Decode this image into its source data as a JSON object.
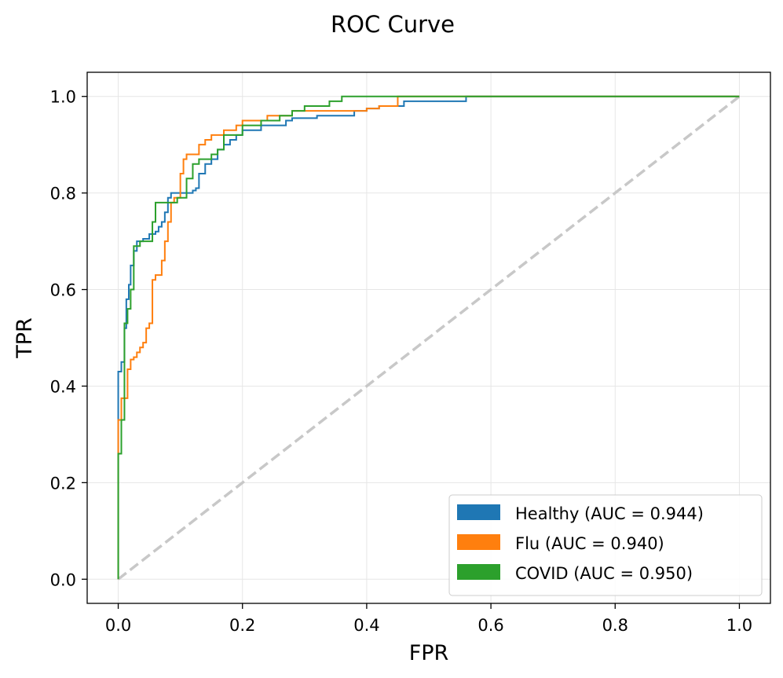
{
  "chart_data": {
    "type": "line",
    "title": "ROC Curve",
    "xlabel": "FPR",
    "ylabel": "TPR",
    "xlim": [
      -0.05,
      1.05
    ],
    "ylim": [
      -0.05,
      1.05
    ],
    "grid": true,
    "legend_position": "lower-right",
    "xticks": [
      0.0,
      0.2,
      0.4,
      0.6,
      0.8,
      1.0
    ],
    "xtick_labels": [
      "0.0",
      "0.2",
      "0.4",
      "0.6",
      "0.8",
      "1.0"
    ],
    "yticks": [
      0.0,
      0.2,
      0.4,
      0.6,
      0.8,
      1.0
    ],
    "ytick_labels": [
      "0.0",
      "0.2",
      "0.4",
      "0.6",
      "0.8",
      "1.0"
    ],
    "reference_line": {
      "name": "chance",
      "x": [
        0,
        1
      ],
      "y": [
        0,
        1
      ],
      "color": "#c8c8c8",
      "style": "dashed"
    },
    "series": [
      {
        "name": "Healthy (AUC = 0.944)",
        "color": "#1f77b4",
        "x": [
          0.0,
          0.0,
          0.0,
          0.005,
          0.005,
          0.01,
          0.01,
          0.013,
          0.013,
          0.017,
          0.017,
          0.02,
          0.02,
          0.025,
          0.025,
          0.03,
          0.03,
          0.04,
          0.04,
          0.05,
          0.05,
          0.06,
          0.06,
          0.065,
          0.065,
          0.07,
          0.07,
          0.075,
          0.075,
          0.08,
          0.08,
          0.085,
          0.085,
          0.1,
          0.1,
          0.12,
          0.12,
          0.125,
          0.125,
          0.13,
          0.13,
          0.14,
          0.14,
          0.15,
          0.15,
          0.16,
          0.16,
          0.17,
          0.17,
          0.18,
          0.18,
          0.19,
          0.19,
          0.2,
          0.2,
          0.23,
          0.23,
          0.27,
          0.27,
          0.28,
          0.28,
          0.32,
          0.32,
          0.38,
          0.38,
          0.4,
          0.4,
          0.42,
          0.42,
          0.46,
          0.46,
          0.56,
          0.56,
          1.0
        ],
        "y": [
          0.0,
          0.26,
          0.43,
          0.43,
          0.45,
          0.45,
          0.52,
          0.52,
          0.58,
          0.58,
          0.61,
          0.61,
          0.65,
          0.65,
          0.68,
          0.68,
          0.7,
          0.7,
          0.705,
          0.705,
          0.715,
          0.715,
          0.72,
          0.72,
          0.73,
          0.73,
          0.74,
          0.74,
          0.76,
          0.76,
          0.79,
          0.79,
          0.8,
          0.8,
          0.8,
          0.8,
          0.805,
          0.805,
          0.81,
          0.81,
          0.84,
          0.84,
          0.86,
          0.86,
          0.87,
          0.87,
          0.89,
          0.89,
          0.9,
          0.9,
          0.91,
          0.91,
          0.92,
          0.92,
          0.93,
          0.93,
          0.94,
          0.94,
          0.95,
          0.95,
          0.955,
          0.955,
          0.96,
          0.96,
          0.97,
          0.97,
          0.975,
          0.975,
          0.98,
          0.98,
          0.99,
          0.99,
          1.0,
          1.0
        ]
      },
      {
        "name": "Flu (AUC = 0.940)",
        "color": "#ff7f0e",
        "x": [
          0.0,
          0.0,
          0.005,
          0.005,
          0.015,
          0.015,
          0.02,
          0.02,
          0.025,
          0.025,
          0.03,
          0.03,
          0.035,
          0.035,
          0.04,
          0.04,
          0.045,
          0.045,
          0.05,
          0.05,
          0.055,
          0.055,
          0.06,
          0.06,
          0.07,
          0.07,
          0.075,
          0.075,
          0.08,
          0.08,
          0.085,
          0.085,
          0.09,
          0.09,
          0.1,
          0.1,
          0.105,
          0.105,
          0.11,
          0.11,
          0.13,
          0.13,
          0.14,
          0.14,
          0.15,
          0.15,
          0.17,
          0.17,
          0.19,
          0.19,
          0.2,
          0.2,
          0.24,
          0.24,
          0.28,
          0.28,
          0.4,
          0.4,
          0.42,
          0.42,
          0.45,
          0.45,
          1.0
        ],
        "y": [
          0.0,
          0.33,
          0.33,
          0.375,
          0.375,
          0.435,
          0.435,
          0.455,
          0.455,
          0.46,
          0.46,
          0.47,
          0.47,
          0.48,
          0.48,
          0.49,
          0.49,
          0.52,
          0.52,
          0.53,
          0.53,
          0.62,
          0.62,
          0.63,
          0.63,
          0.66,
          0.66,
          0.7,
          0.7,
          0.74,
          0.74,
          0.78,
          0.78,
          0.79,
          0.79,
          0.84,
          0.84,
          0.87,
          0.87,
          0.88,
          0.88,
          0.9,
          0.9,
          0.91,
          0.91,
          0.92,
          0.92,
          0.93,
          0.93,
          0.94,
          0.94,
          0.95,
          0.95,
          0.96,
          0.96,
          0.97,
          0.97,
          0.975,
          0.975,
          0.98,
          0.98,
          1.0,
          1.0
        ]
      },
      {
        "name": "COVID (AUC = 0.950)",
        "color": "#2ca02c",
        "x": [
          0.0,
          0.0,
          0.005,
          0.005,
          0.01,
          0.01,
          0.015,
          0.015,
          0.02,
          0.02,
          0.025,
          0.025,
          0.035,
          0.035,
          0.055,
          0.055,
          0.06,
          0.06,
          0.07,
          0.07,
          0.08,
          0.08,
          0.095,
          0.095,
          0.11,
          0.11,
          0.12,
          0.12,
          0.13,
          0.13,
          0.15,
          0.15,
          0.16,
          0.16,
          0.17,
          0.17,
          0.2,
          0.2,
          0.23,
          0.23,
          0.26,
          0.26,
          0.28,
          0.28,
          0.3,
          0.3,
          0.34,
          0.34,
          0.36,
          0.36,
          1.0
        ],
        "y": [
          0.0,
          0.26,
          0.26,
          0.33,
          0.33,
          0.53,
          0.53,
          0.56,
          0.56,
          0.6,
          0.6,
          0.69,
          0.69,
          0.7,
          0.7,
          0.74,
          0.74,
          0.78,
          0.78,
          0.78,
          0.78,
          0.78,
          0.78,
          0.79,
          0.79,
          0.83,
          0.83,
          0.86,
          0.86,
          0.87,
          0.87,
          0.88,
          0.88,
          0.89,
          0.89,
          0.92,
          0.92,
          0.94,
          0.94,
          0.95,
          0.95,
          0.96,
          0.96,
          0.97,
          0.97,
          0.98,
          0.98,
          0.99,
          0.99,
          1.0,
          1.0
        ]
      }
    ]
  }
}
